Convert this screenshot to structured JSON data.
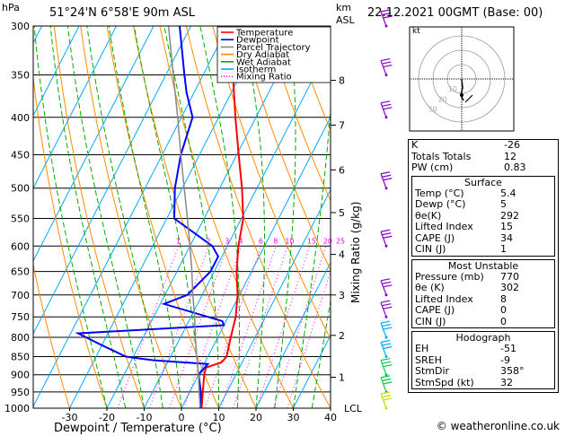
{
  "header": {
    "hpa_unit": "hPa",
    "location": "51°24'N  6°58'E  90m  ASL",
    "km_unit": "km",
    "asl_unit": "ASL",
    "datetime": "22.12.2021  00GMT  (Base: 00)"
  },
  "axes": {
    "xlabel": "Dewpoint / Temperature (°C)",
    "mixing_ratio_label": "Mixing Ratio (g/kg)",
    "lcl_label": "LCL"
  },
  "legend": [
    {
      "label": "Temperature",
      "color": "#ff0000",
      "style": "solid"
    },
    {
      "label": "Dewpoint",
      "color": "#0000ff",
      "style": "solid"
    },
    {
      "label": "Parcel Trajectory",
      "color": "#888888",
      "style": "solid"
    },
    {
      "label": "Dry Adiabat",
      "color": "#ff8c00",
      "style": "solid"
    },
    {
      "label": "Wet Adiabat",
      "color": "#00aa00",
      "style": "solid"
    },
    {
      "label": "Isotherm",
      "color": "#00aaff",
      "style": "solid"
    },
    {
      "label": "Mixing Ratio",
      "color": "#ff00ff",
      "style": "dotted"
    }
  ],
  "chart_data": {
    "type": "line",
    "xlim": [
      -40,
      40
    ],
    "x_ticks": [
      -30,
      -20,
      -10,
      0,
      10,
      20,
      30,
      40
    ],
    "pressure_levels": [
      300,
      350,
      400,
      450,
      500,
      550,
      600,
      650,
      700,
      750,
      800,
      850,
      900,
      950,
      1000
    ],
    "km_ticks": [
      {
        "km": 1,
        "p": 907
      },
      {
        "km": 2,
        "p": 795
      },
      {
        "km": 3,
        "p": 700
      },
      {
        "km": 4,
        "p": 616
      },
      {
        "km": 5,
        "p": 540
      },
      {
        "km": 6,
        "p": 472
      },
      {
        "km": 7,
        "p": 410
      },
      {
        "km": 8,
        "p": 356
      }
    ],
    "mixing_ratio_lines": [
      1,
      2,
      3,
      4,
      6,
      8,
      10,
      15,
      20,
      25
    ],
    "series": [
      {
        "name": "Temperature",
        "color": "#ff0000",
        "points": [
          [
            1000,
            5.4
          ],
          [
            950,
            3.5
          ],
          [
            900,
            1.5
          ],
          [
            880,
            1.0
          ],
          [
            865,
            4.5
          ],
          [
            850,
            5.0
          ],
          [
            800,
            3.5
          ],
          [
            750,
            2.0
          ],
          [
            700,
            -0.5
          ],
          [
            650,
            -4.0
          ],
          [
            600,
            -7.0
          ],
          [
            550,
            -9.5
          ],
          [
            500,
            -14.0
          ],
          [
            450,
            -19.5
          ],
          [
            400,
            -25.5
          ],
          [
            350,
            -32.0
          ],
          [
            300,
            -40.0
          ]
        ]
      },
      {
        "name": "Dewpoint",
        "color": "#0000ff",
        "points": [
          [
            1000,
            5.0
          ],
          [
            950,
            3.0
          ],
          [
            900,
            0.0
          ],
          [
            870,
            1.0
          ],
          [
            860,
            -14.0
          ],
          [
            855,
            -18.0
          ],
          [
            850,
            -22.0
          ],
          [
            820,
            -30.0
          ],
          [
            790,
            -38.0
          ],
          [
            770,
            0.0
          ],
          [
            760,
            -1.0
          ],
          [
            720,
            -19.0
          ],
          [
            700,
            -14.0
          ],
          [
            650,
            -11.0
          ],
          [
            620,
            -11.0
          ],
          [
            600,
            -14.0
          ],
          [
            550,
            -28.0
          ],
          [
            500,
            -32.0
          ],
          [
            450,
            -35.0
          ],
          [
            400,
            -37.0
          ],
          [
            370,
            -42.0
          ],
          [
            350,
            -45.0
          ],
          [
            300,
            -53.0
          ]
        ]
      },
      {
        "name": "Parcel Trajectory",
        "color": "#888888",
        "points": [
          [
            1000,
            5.0
          ],
          [
            950,
            2.5
          ],
          [
            900,
            0.0
          ],
          [
            850,
            -3.0
          ],
          [
            800,
            -6.0
          ],
          [
            750,
            -9.0
          ],
          [
            700,
            -12.5
          ],
          [
            650,
            -16.0
          ],
          [
            600,
            -20.0
          ],
          [
            550,
            -24.5
          ],
          [
            500,
            -29.5
          ],
          [
            450,
            -35.0
          ],
          [
            400,
            -41.0
          ],
          [
            350,
            -48.0
          ],
          [
            300,
            -56.0
          ]
        ]
      }
    ],
    "wind_barbs": [
      {
        "p": 300,
        "color": "#8800cc"
      },
      {
        "p": 350,
        "color": "#8800cc"
      },
      {
        "p": 400,
        "color": "#8800cc"
      },
      {
        "p": 500,
        "color": "#8800cc"
      },
      {
        "p": 600,
        "color": "#8800cc"
      },
      {
        "p": 700,
        "color": "#8800cc"
      },
      {
        "p": 750,
        "color": "#8800cc"
      },
      {
        "p": 800,
        "color": "#00aaff"
      },
      {
        "p": 850,
        "color": "#00aaff"
      },
      {
        "p": 900,
        "color": "#00cc44"
      },
      {
        "p": 950,
        "color": "#00cc44"
      },
      {
        "p": 1000,
        "color": "#ccdd00"
      }
    ]
  },
  "hodograph": {
    "unit": "kt",
    "ring_labels": [
      "10",
      "20",
      "30"
    ]
  },
  "indices": [
    {
      "label": "K",
      "value": "-26"
    },
    {
      "label": "Totals Totals",
      "value": "12"
    },
    {
      "label": "PW (cm)",
      "value": "0.83"
    }
  ],
  "surface": {
    "title": "Surface",
    "rows": [
      {
        "label": "Temp (°C)",
        "value": "5.4"
      },
      {
        "label": "Dewp (°C)",
        "value": "5"
      },
      {
        "label": "θe(K)",
        "value": "292"
      },
      {
        "label": "Lifted Index",
        "value": "15"
      },
      {
        "label": "CAPE (J)",
        "value": "34"
      },
      {
        "label": "CIN (J)",
        "value": "1"
      }
    ]
  },
  "most_unstable": {
    "title": "Most Unstable",
    "rows": [
      {
        "label": "Pressure (mb)",
        "value": "770"
      },
      {
        "label": "θe (K)",
        "value": "302"
      },
      {
        "label": "Lifted Index",
        "value": "8"
      },
      {
        "label": "CAPE (J)",
        "value": "0"
      },
      {
        "label": "CIN (J)",
        "value": "0"
      }
    ]
  },
  "hodograph_table": {
    "title": "Hodograph",
    "rows": [
      {
        "label": "EH",
        "value": "-51"
      },
      {
        "label": "SREH",
        "value": "-9"
      },
      {
        "label": "StmDir",
        "value": "358°"
      },
      {
        "label": "StmSpd (kt)",
        "value": "32"
      }
    ]
  },
  "footer": "© weatheronline.co.uk"
}
